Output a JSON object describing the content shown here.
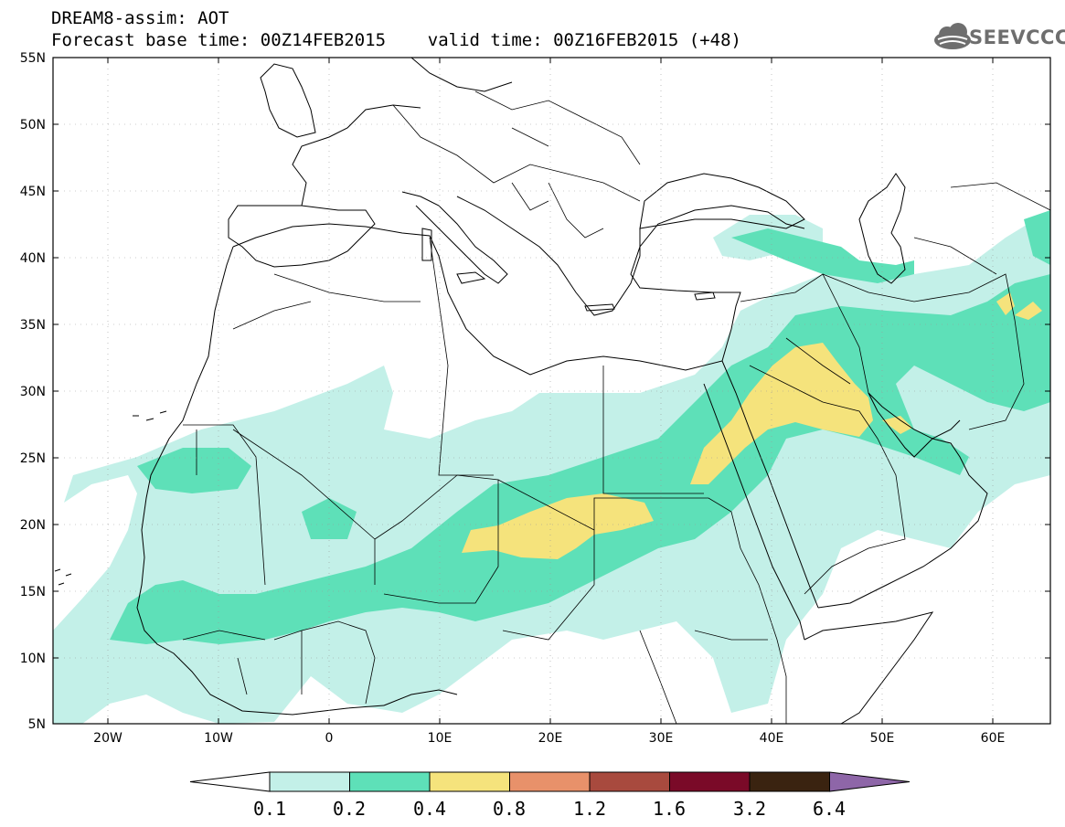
{
  "header": {
    "title": "DREAM8-assim: AOT",
    "subtitle": "Forecast base time: 00Z14FEB2015    valid time: 00Z16FEB2015 (+48)"
  },
  "logo": {
    "text": "SEEVCCC"
  },
  "map": {
    "variable": "AOT",
    "lon_range": [
      -25,
      65
    ],
    "lat_range": [
      5,
      55
    ],
    "lat_ticks": [
      "5N",
      "10N",
      "15N",
      "20N",
      "25N",
      "30N",
      "35N",
      "40N",
      "45N",
      "50N",
      "55N"
    ],
    "lon_ticks": [
      "20W",
      "10W",
      "0",
      "10E",
      "20E",
      "30E",
      "40E",
      "50E",
      "60E"
    ],
    "gridlines": true
  },
  "colorbar": {
    "levels": [
      "0.1",
      "0.2",
      "0.4",
      "0.8",
      "1.2",
      "1.6",
      "3.2",
      "6.4"
    ],
    "colors": [
      "#ffffff",
      "#c3f0e8",
      "#5ee0b8",
      "#f5e37c",
      "#e8916a",
      "#a84a3e",
      "#7a0a28",
      "#3a2310",
      "#8e66a8"
    ]
  }
}
